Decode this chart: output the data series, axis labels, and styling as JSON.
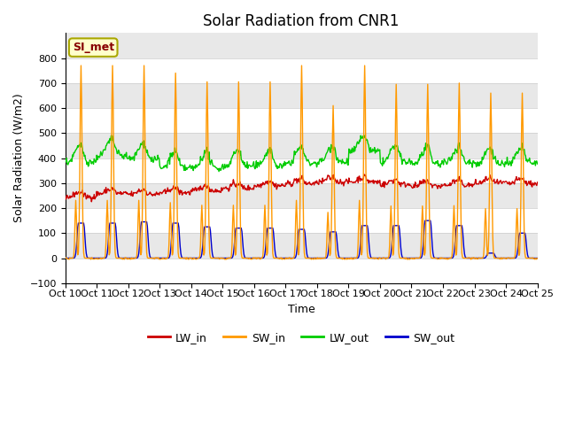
{
  "title": "Solar Radiation from CNR1",
  "xlabel": "Time",
  "ylabel": "Solar Radiation (W/m2)",
  "ylim": [
    -100,
    900
  ],
  "yticks": [
    -100,
    0,
    100,
    200,
    300,
    400,
    500,
    600,
    700,
    800
  ],
  "x_labels": [
    "Oct 10",
    "Oct 11",
    "Oct 12",
    "Oct 13",
    "Oct 14",
    "Oct 15",
    "Oct 16",
    "Oct 17",
    "Oct 18",
    "Oct 19",
    "Oct 20",
    "Oct 21",
    "Oct 22",
    "Oct 23",
    "Oct 24",
    "Oct 25"
  ],
  "colors": {
    "LW_in": "#cc0000",
    "SW_in": "#ff9900",
    "LW_out": "#00cc00",
    "SW_out": "#0000cc"
  },
  "annotation_text": "SI_met",
  "annotation_bbox_facecolor": "#ffffcc",
  "annotation_bbox_edgecolor": "#aaa800",
  "annotation_text_color": "#880000",
  "band_colors": [
    "#ffffff",
    "#e8e8e8"
  ],
  "title_fontsize": 12,
  "axis_label_fontsize": 9,
  "tick_fontsize": 8,
  "n_days": 15,
  "sw_peaks": [
    770,
    770,
    770,
    740,
    705,
    705,
    705,
    770,
    610,
    770,
    695,
    695,
    700,
    660,
    660
  ],
  "sw_out_peaks": [
    140,
    140,
    145,
    140,
    125,
    120,
    120,
    115,
    105,
    130,
    130,
    150,
    130,
    20,
    100
  ],
  "lw_in_base": [
    245,
    258,
    255,
    262,
    270,
    280,
    290,
    298,
    305,
    305,
    295,
    288,
    292,
    300,
    298
  ],
  "lw_out_base": [
    385,
    410,
    395,
    360,
    360,
    368,
    368,
    380,
    385,
    425,
    385,
    378,
    382,
    378,
    378
  ]
}
